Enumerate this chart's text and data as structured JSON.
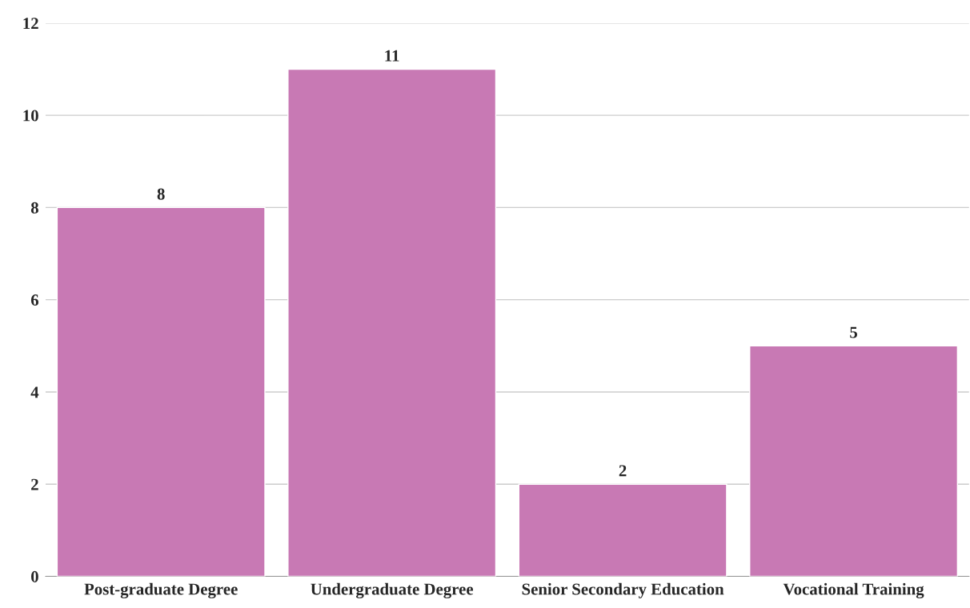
{
  "chart_data": {
    "type": "bar",
    "categories": [
      "Post-graduate Degree",
      "Undergraduate Degree",
      "Senior Secondary Education",
      "Vocational Training"
    ],
    "values": [
      8,
      11,
      2,
      5
    ],
    "color": "#c879b4",
    "ylim": [
      0,
      12
    ],
    "yticks": [
      0,
      2,
      4,
      6,
      8,
      10,
      12
    ],
    "grid": "y",
    "data_labels": true
  }
}
